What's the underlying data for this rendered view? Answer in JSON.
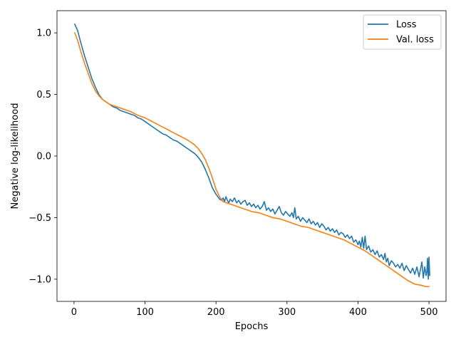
{
  "chart_data": {
    "type": "line",
    "title": "",
    "xlabel": "Epochs",
    "ylabel": "Negative log-likelihood",
    "xlim": [
      -24,
      524
    ],
    "ylim": [
      -1.18,
      1.18
    ],
    "x_ticks": [
      0,
      100,
      200,
      300,
      400,
      500
    ],
    "x_tick_labels": [
      "0",
      "100",
      "200",
      "300",
      "400",
      "500"
    ],
    "y_ticks": [
      1.0,
      0.5,
      0.0,
      -0.5,
      -1.0
    ],
    "y_tick_labels": [
      "1.0",
      "0.5",
      "0.0",
      "−0.5",
      "−1.0"
    ],
    "grid": false,
    "legend_position": "top-right",
    "series": [
      {
        "name": "Loss",
        "color": "#1f77b4",
        "x": [
          1,
          5,
          10,
          15,
          20,
          25,
          30,
          35,
          40,
          45,
          50,
          55,
          60,
          65,
          70,
          75,
          80,
          85,
          90,
          95,
          100,
          105,
          110,
          115,
          120,
          125,
          130,
          135,
          140,
          145,
          150,
          155,
          160,
          165,
          170,
          175,
          180,
          185,
          190,
          195,
          200,
          205,
          208,
          210,
          212,
          214,
          216,
          218,
          220,
          223,
          226,
          229,
          232,
          235,
          238,
          241,
          244,
          247,
          250,
          253,
          256,
          259,
          262,
          265,
          268,
          271,
          274,
          277,
          280,
          283,
          286,
          289,
          292,
          295,
          298,
          301,
          304,
          307,
          309,
          311,
          313,
          316,
          319,
          322,
          325,
          328,
          331,
          334,
          337,
          340,
          343,
          346,
          349,
          352,
          355,
          358,
          361,
          364,
          367,
          370,
          373,
          376,
          379,
          382,
          385,
          388,
          391,
          394,
          397,
          400,
          402,
          404,
          406,
          408,
          410,
          412,
          415,
          418,
          421,
          424,
          427,
          430,
          433,
          436,
          438,
          440,
          442,
          444,
          447,
          450,
          453,
          456,
          459,
          462,
          465,
          468,
          471,
          474,
          477,
          480,
          483,
          486,
          488,
          490,
          492,
          494,
          496,
          497,
          498,
          499,
          500,
          501
        ],
        "y": [
          1.07,
          1.02,
          0.91,
          0.81,
          0.72,
          0.63,
          0.56,
          0.5,
          0.46,
          0.44,
          0.42,
          0.4,
          0.39,
          0.37,
          0.36,
          0.35,
          0.34,
          0.33,
          0.31,
          0.3,
          0.28,
          0.26,
          0.24,
          0.22,
          0.2,
          0.18,
          0.17,
          0.15,
          0.13,
          0.12,
          0.1,
          0.08,
          0.06,
          0.04,
          0.02,
          -0.01,
          -0.05,
          -0.11,
          -0.18,
          -0.26,
          -0.31,
          -0.35,
          -0.36,
          -0.34,
          -0.37,
          -0.33,
          -0.36,
          -0.38,
          -0.35,
          -0.37,
          -0.34,
          -0.38,
          -0.36,
          -0.39,
          -0.37,
          -0.36,
          -0.4,
          -0.38,
          -0.41,
          -0.39,
          -0.42,
          -0.4,
          -0.43,
          -0.41,
          -0.37,
          -0.44,
          -0.42,
          -0.45,
          -0.43,
          -0.47,
          -0.44,
          -0.41,
          -0.46,
          -0.48,
          -0.45,
          -0.47,
          -0.49,
          -0.46,
          -0.5,
          -0.42,
          -0.51,
          -0.49,
          -0.53,
          -0.5,
          -0.52,
          -0.54,
          -0.51,
          -0.55,
          -0.53,
          -0.56,
          -0.54,
          -0.58,
          -0.55,
          -0.57,
          -0.6,
          -0.58,
          -0.61,
          -0.59,
          -0.62,
          -0.6,
          -0.64,
          -0.62,
          -0.63,
          -0.66,
          -0.64,
          -0.67,
          -0.65,
          -0.7,
          -0.68,
          -0.72,
          -0.69,
          -0.74,
          -0.66,
          -0.75,
          -0.65,
          -0.76,
          -0.73,
          -0.78,
          -0.76,
          -0.8,
          -0.77,
          -0.82,
          -0.8,
          -0.84,
          -0.79,
          -0.86,
          -0.83,
          -0.89,
          -0.85,
          -0.87,
          -0.9,
          -0.88,
          -0.91,
          -0.87,
          -0.93,
          -0.89,
          -0.92,
          -0.95,
          -0.91,
          -0.96,
          -0.9,
          -0.98,
          -0.92,
          -0.86,
          -0.99,
          -0.9,
          -0.97,
          -0.94,
          -0.83,
          -1.0,
          -0.82,
          -0.97
        ]
      },
      {
        "name": "Val. loss",
        "color": "#ff7f0e",
        "x": [
          1,
          5,
          10,
          15,
          20,
          25,
          30,
          35,
          40,
          45,
          50,
          60,
          70,
          80,
          90,
          100,
          110,
          120,
          130,
          140,
          150,
          160,
          170,
          175,
          180,
          185,
          190,
          195,
          200,
          205,
          210,
          215,
          220,
          230,
          240,
          250,
          260,
          270,
          280,
          290,
          300,
          310,
          320,
          330,
          340,
          350,
          360,
          370,
          380,
          390,
          400,
          410,
          420,
          430,
          440,
          450,
          460,
          470,
          480,
          490,
          495,
          500
        ],
        "y": [
          1.0,
          0.94,
          0.84,
          0.75,
          0.67,
          0.59,
          0.53,
          0.49,
          0.46,
          0.44,
          0.42,
          0.4,
          0.38,
          0.36,
          0.33,
          0.31,
          0.28,
          0.25,
          0.22,
          0.19,
          0.16,
          0.13,
          0.09,
          0.06,
          0.02,
          -0.03,
          -0.1,
          -0.18,
          -0.27,
          -0.33,
          -0.37,
          -0.38,
          -0.39,
          -0.41,
          -0.43,
          -0.45,
          -0.46,
          -0.48,
          -0.5,
          -0.51,
          -0.53,
          -0.55,
          -0.57,
          -0.58,
          -0.6,
          -0.62,
          -0.64,
          -0.66,
          -0.68,
          -0.71,
          -0.74,
          -0.77,
          -0.81,
          -0.85,
          -0.89,
          -0.93,
          -0.97,
          -1.01,
          -1.04,
          -1.05,
          -1.06,
          -1.06
        ]
      }
    ]
  }
}
